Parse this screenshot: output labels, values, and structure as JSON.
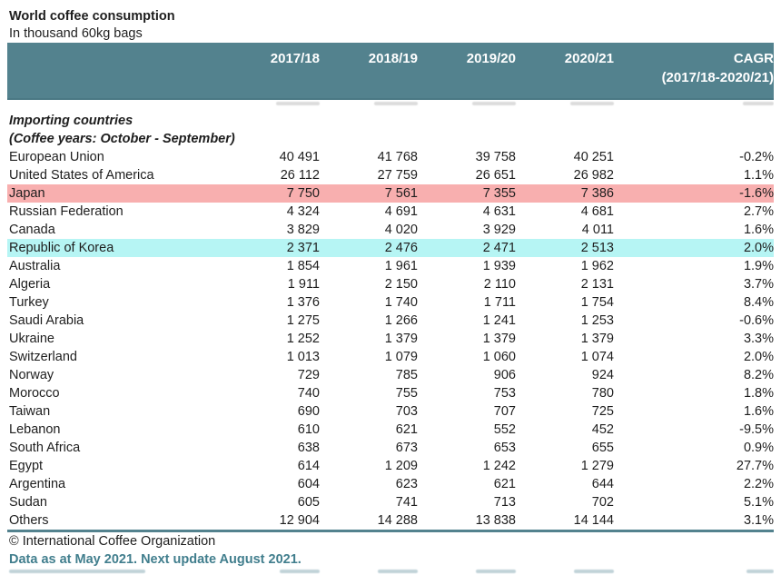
{
  "title": "World coffee consumption",
  "subtitle": "In thousand 60kg bags",
  "table_header": {
    "years": [
      "2017/18",
      "2018/19",
      "2019/20",
      "2020/21"
    ],
    "cagr_line1": "CAGR",
    "cagr_line2": "(2017/18-2020/21)"
  },
  "chart_data": {
    "type": "table",
    "title": "World coffee consumption",
    "unit": "In thousand 60kg bags",
    "columns": [
      "2017/18",
      "2018/19",
      "2019/20",
      "2020/21",
      "CAGR (2017/18-2020/21)"
    ],
    "section": "Importing countries",
    "section_note": "(Coffee years: October - September)",
    "rows": [
      {
        "country": "European Union",
        "values": [
          "40 491",
          "41 768",
          "39 758",
          "40 251"
        ],
        "cagr": "-0.2%",
        "highlight": "none"
      },
      {
        "country": "United States of America",
        "values": [
          "26 112",
          "27 759",
          "26 651",
          "26 982"
        ],
        "cagr": "1.1%",
        "highlight": "none"
      },
      {
        "country": "Japan",
        "values": [
          "7 750",
          "7 561",
          "7 355",
          "7 386"
        ],
        "cagr": "-1.6%",
        "highlight": "pink"
      },
      {
        "country": "Russian Federation",
        "values": [
          "4 324",
          "4 691",
          "4 631",
          "4 681"
        ],
        "cagr": "2.7%",
        "highlight": "none"
      },
      {
        "country": "Canada",
        "values": [
          "3 829",
          "4 020",
          "3 929",
          "4 011"
        ],
        "cagr": "1.6%",
        "highlight": "none"
      },
      {
        "country": "Republic of Korea",
        "values": [
          "2 371",
          "2 476",
          "2 471",
          "2 513"
        ],
        "cagr": "2.0%",
        "highlight": "cyan"
      },
      {
        "country": "Australia",
        "values": [
          "1 854",
          "1 961",
          "1 939",
          "1 962"
        ],
        "cagr": "1.9%",
        "highlight": "none"
      },
      {
        "country": "Algeria",
        "values": [
          "1 911",
          "2 150",
          "2 110",
          "2 131"
        ],
        "cagr": "3.7%",
        "highlight": "none"
      },
      {
        "country": "Turkey",
        "values": [
          "1 376",
          "1 740",
          "1 711",
          "1 754"
        ],
        "cagr": "8.4%",
        "highlight": "none"
      },
      {
        "country": "Saudi Arabia",
        "values": [
          "1 275",
          "1 266",
          "1 241",
          "1 253"
        ],
        "cagr": "-0.6%",
        "highlight": "none"
      },
      {
        "country": "Ukraine",
        "values": [
          "1 252",
          "1 379",
          "1 379",
          "1 379"
        ],
        "cagr": "3.3%",
        "highlight": "none"
      },
      {
        "country": "Switzerland",
        "values": [
          "1 013",
          "1 079",
          "1 060",
          "1 074"
        ],
        "cagr": "2.0%",
        "highlight": "none"
      },
      {
        "country": "Norway",
        "values": [
          "729",
          "785",
          "906",
          "924"
        ],
        "cagr": "8.2%",
        "highlight": "none"
      },
      {
        "country": "Morocco",
        "values": [
          "740",
          "755",
          "753",
          "780"
        ],
        "cagr": "1.8%",
        "highlight": "none"
      },
      {
        "country": "Taiwan",
        "values": [
          "690",
          "703",
          "707",
          "725"
        ],
        "cagr": "1.6%",
        "highlight": "none"
      },
      {
        "country": "Lebanon",
        "values": [
          "610",
          "621",
          "552",
          "452"
        ],
        "cagr": "-9.5%",
        "highlight": "none"
      },
      {
        "country": "South Africa",
        "values": [
          "638",
          "673",
          "653",
          "655"
        ],
        "cagr": "0.9%",
        "highlight": "none"
      },
      {
        "country": "Egypt",
        "values": [
          "614",
          "1 209",
          "1 242",
          "1 279"
        ],
        "cagr": "27.7%",
        "highlight": "none"
      },
      {
        "country": "Argentina",
        "values": [
          "604",
          "623",
          "621",
          "644"
        ],
        "cagr": "2.2%",
        "highlight": "none"
      },
      {
        "country": "Sudan",
        "values": [
          "605",
          "741",
          "713",
          "702"
        ],
        "cagr": "5.1%",
        "highlight": "none"
      },
      {
        "country": "Others",
        "values": [
          "12 904",
          "14 288",
          "13 838",
          "14 144"
        ],
        "cagr": "3.1%",
        "highlight": "none"
      }
    ]
  },
  "footer": {
    "copyright": "© International Coffee Organization",
    "update_note": "Data as at May 2021. Next update August 2021."
  },
  "colors": {
    "header_bg": "#53828E",
    "highlight_pink": "#F8AFAF",
    "highlight_cyan": "#B6F5F4",
    "note_teal": "#417E8D",
    "text": "#1E1E1E"
  }
}
